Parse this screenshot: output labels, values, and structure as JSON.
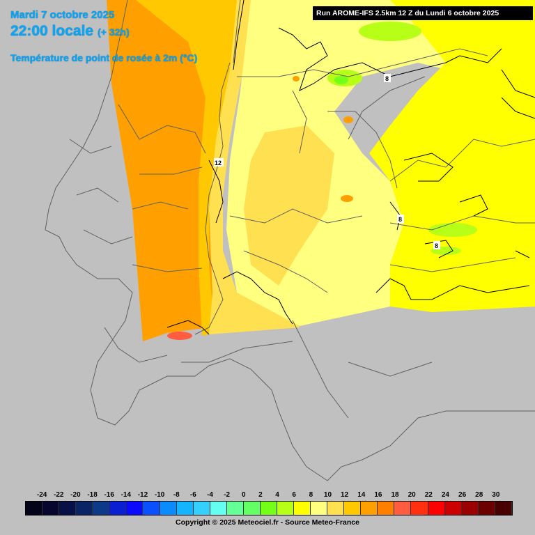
{
  "header": {
    "date": "Mardi 7 octobre 2025",
    "time": "22:00 locale",
    "lead": "(+ 32h)",
    "parameter": "Température de point de rosée à 2m (°C)"
  },
  "run_info": "Run AROME-IFS 2.5km 12 Z du Lundi 6 octobre 2025",
  "contour_labels": [
    "8",
    "12",
    "8",
    "8"
  ],
  "legend": {
    "labels": [
      "-24",
      "-22",
      "-20",
      "-18",
      "-16",
      "-14",
      "-12",
      "-10",
      "-8",
      "-6",
      "-4",
      "-2",
      "0",
      "2",
      "4",
      "6",
      "8",
      "10",
      "12",
      "14",
      "16",
      "18",
      "20",
      "22",
      "24",
      "26",
      "28",
      "30"
    ],
    "colors": [
      "#040418",
      "#06062e",
      "#081048",
      "#0a2466",
      "#0c3a88",
      "#0a1ed2",
      "#0a0aff",
      "#0a50ff",
      "#0a8cff",
      "#14b4ff",
      "#36d0ff",
      "#64fff0",
      "#64ff96",
      "#64ff64",
      "#74ff18",
      "#b8ff18",
      "#ffff00",
      "#ffff80",
      "#ffe050",
      "#ffc800",
      "#ffa000",
      "#ff8000",
      "#ff5c40",
      "#ff3010",
      "#ff0000",
      "#cc0000",
      "#9a0000",
      "#6c0000",
      "#480000"
    ]
  },
  "copyright": "Copyright © 2025 Meteociel.fr - Source Meteo-France"
}
